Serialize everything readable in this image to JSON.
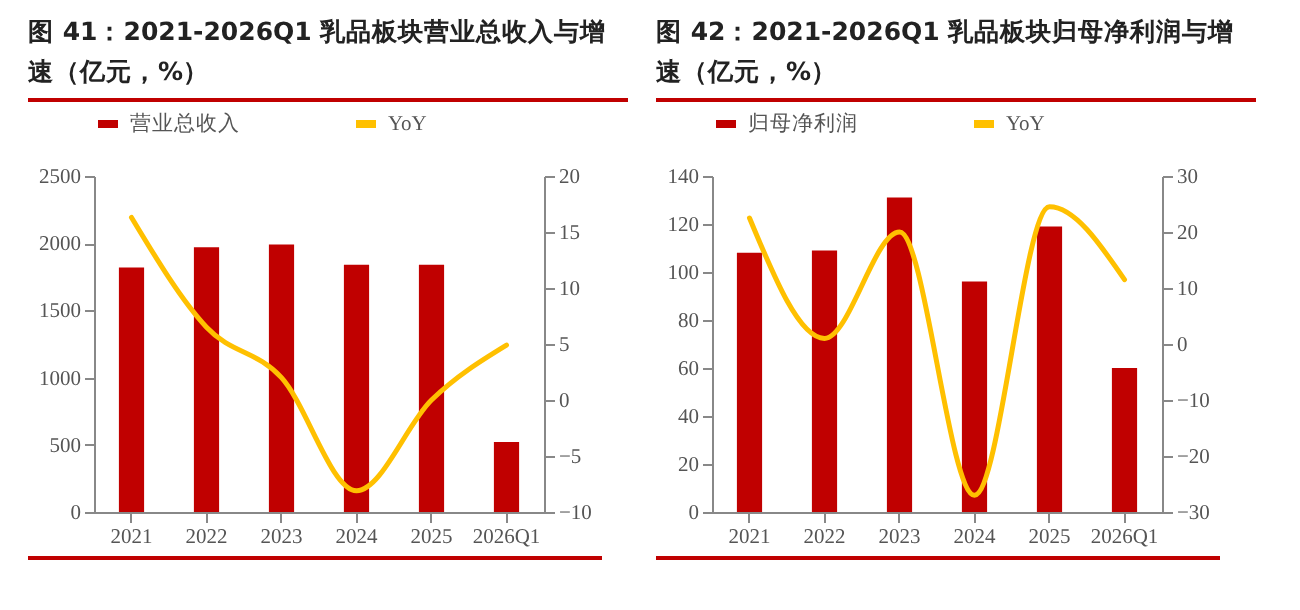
{
  "chart_data": [
    {
      "type": "bar",
      "title": "图 41：2021-2026Q1 乳品板块营业总收入与增速（亿元，%）",
      "categories": [
        "2021",
        "2022",
        "2023",
        "2024",
        "2025",
        "2026Q1"
      ],
      "series": [
        {
          "name": "营业总收入",
          "color": "#c00000",
          "values": [
            1820,
            1970,
            1990,
            1840,
            1840,
            520
          ]
        },
        {
          "name": "YoY",
          "type": "line",
          "axis": "y2",
          "color": "#ffc000",
          "values": [
            16.3,
            6.5,
            2.0,
            -8.1,
            0,
            4.9
          ]
        }
      ],
      "ylim": [
        0,
        2500
      ],
      "yticks": [
        0,
        500,
        1000,
        1500,
        2000,
        2500
      ],
      "y2lim": [
        -10,
        20
      ],
      "y2ticks": [
        -10,
        -5,
        0,
        5,
        10,
        15,
        20
      ],
      "legend": "top",
      "grid": false
    },
    {
      "type": "bar",
      "title": "图 42：2021-2026Q1 乳品板块归母净利润与增速（亿元，%）",
      "categories": [
        "2021",
        "2022",
        "2023",
        "2024",
        "2025",
        "2026Q1"
      ],
      "series": [
        {
          "name": "归母净利润",
          "color": "#c00000",
          "values": [
            108,
            109,
            131,
            96,
            119,
            60
          ]
        },
        {
          "name": "YoY",
          "type": "line",
          "axis": "y2",
          "color": "#ffc000",
          "values": [
            22.5,
            1,
            20,
            -27,
            24.5,
            11.5
          ]
        }
      ],
      "ylim": [
        0,
        140
      ],
      "yticks": [
        0,
        20,
        40,
        60,
        80,
        100,
        120,
        140
      ],
      "y2lim": [
        -30,
        30
      ],
      "y2ticks": [
        -30,
        -20,
        -10,
        0,
        10,
        20,
        30
      ],
      "legend": "top",
      "grid": false
    }
  ]
}
